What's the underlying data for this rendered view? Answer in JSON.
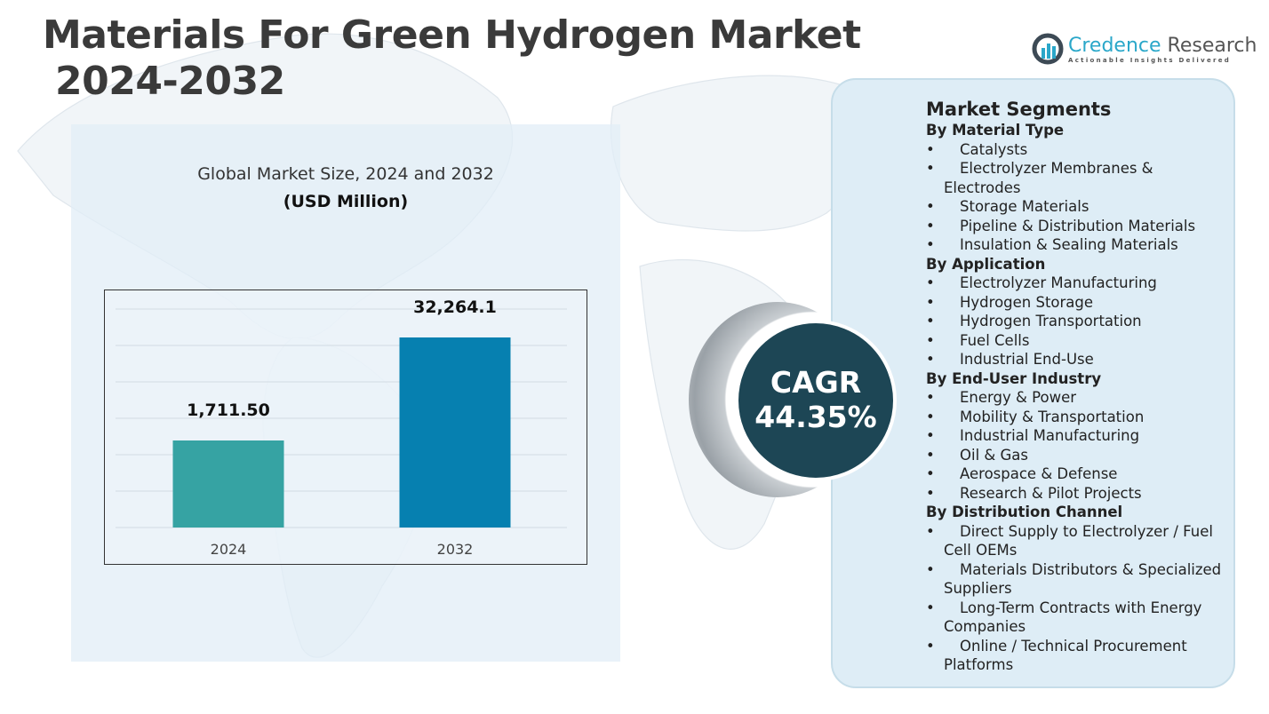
{
  "header": {
    "title_line1": "Materials For Green Hydrogen Market",
    "title_line2": "2024-2032"
  },
  "logo": {
    "name_part1": "Credence",
    "name_part2": "Research",
    "tagline": "Actionable Insights Delivered"
  },
  "chart_data": {
    "type": "bar",
    "title": "Global Market Size, 2024 and 2032",
    "unit_label": "(USD Million)",
    "categories": [
      "2024",
      "2032"
    ],
    "values": [
      1711.5,
      32264.1
    ],
    "data_labels": [
      "1,711.50",
      "32,264.1"
    ],
    "colors": [
      "#36a3a3",
      "#0680b0"
    ],
    "grid": true
  },
  "cagr": {
    "label": "CAGR",
    "value": "44.35%"
  },
  "segments": {
    "title": "Market Segments",
    "groups": [
      {
        "heading": "By Material Type",
        "items": [
          "Catalysts",
          "Electrolyzer Membranes & Electrodes",
          "Storage Materials",
          "Pipeline & Distribution Materials",
          "Insulation & Sealing Materials"
        ]
      },
      {
        "heading": "By Application",
        "items": [
          "Electrolyzer Manufacturing",
          "Hydrogen Storage",
          "Hydrogen Transportation",
          "Fuel Cells",
          "Industrial End-Use"
        ]
      },
      {
        "heading": "By End-User Industry",
        "items": [
          "Energy & Power",
          "Mobility & Transportation",
          "Industrial Manufacturing",
          "Oil & Gas",
          "Aerospace & Defense",
          "Research & Pilot Projects"
        ]
      },
      {
        "heading": "By Distribution Channel",
        "items": [
          "Direct Supply to Electrolyzer / Fuel Cell OEMs",
          "Materials Distributors & Specialized Suppliers",
          "Long-Term Contracts with Energy Companies",
          "Online / Technical Procurement Platforms"
        ]
      }
    ]
  }
}
